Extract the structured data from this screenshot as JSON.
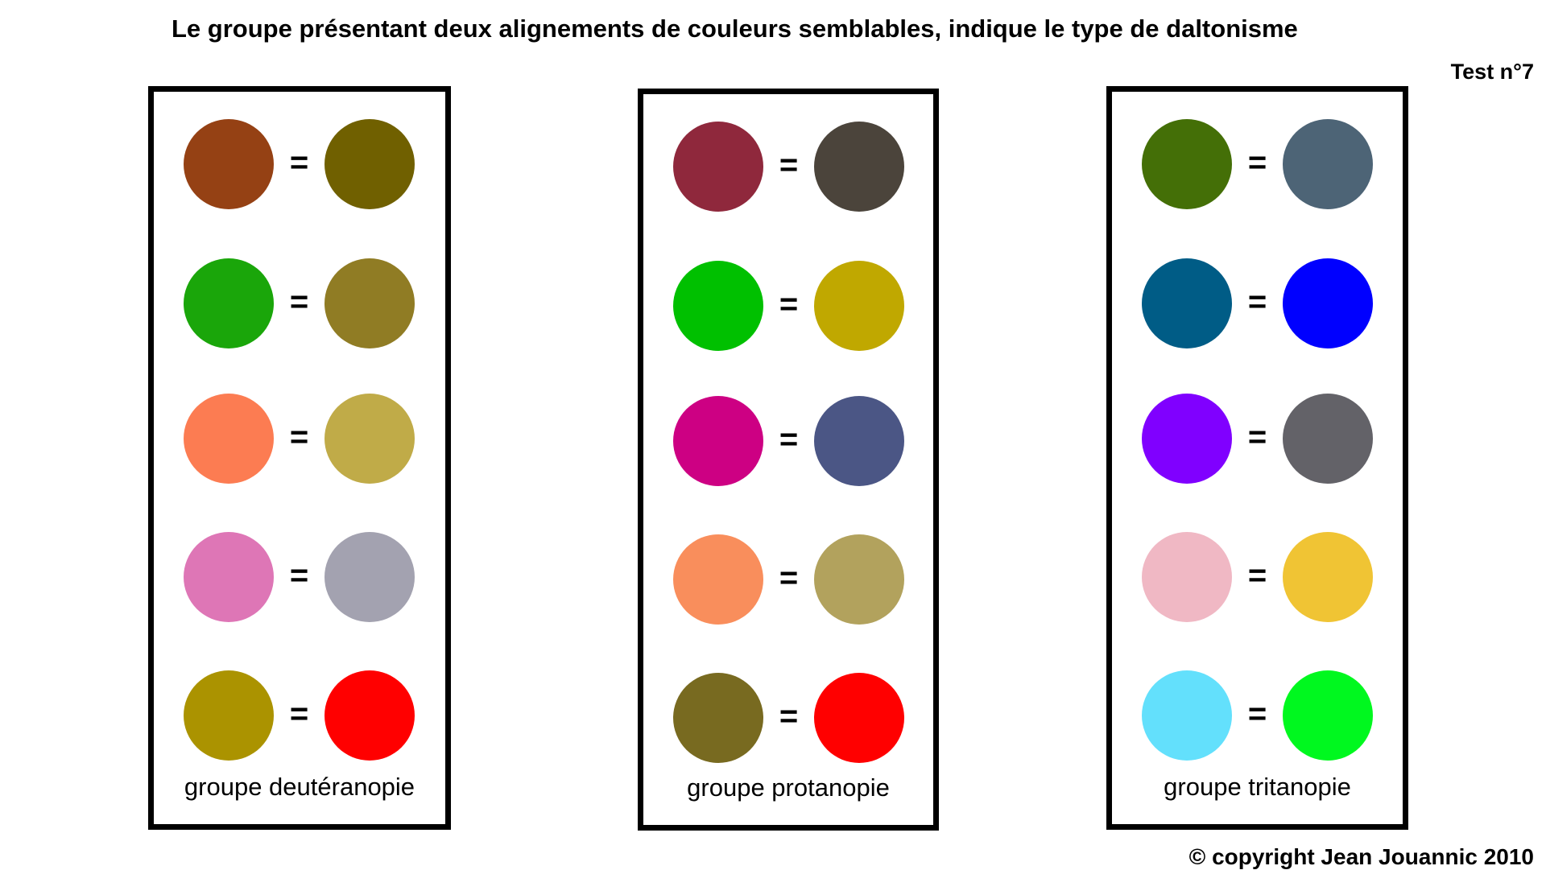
{
  "title": "Le groupe présentant deux alignements de couleurs semblables, indique le type de daltonisme",
  "test_label": "Test n°7",
  "copyright": "© copyright Jean Jouannic 2010",
  "equals_sign": "=",
  "groups": [
    {
      "label": "groupe deutéranopie",
      "pairs": [
        {
          "left": "#954114",
          "right": "#706000"
        },
        {
          "left": "#1aa60a",
          "right": "#907c24"
        },
        {
          "left": "#fc7c52",
          "right": "#c0ab48"
        },
        {
          "left": "#de76b6",
          "right": "#a3a2b0"
        },
        {
          "left": "#ab9300",
          "right": "#ff0000"
        }
      ]
    },
    {
      "label": "groupe protanopie",
      "pairs": [
        {
          "left": "#8f283c",
          "right": "#4b443b"
        },
        {
          "left": "#00c000",
          "right": "#c0a800"
        },
        {
          "left": "#cd0083",
          "right": "#4b5685"
        },
        {
          "left": "#f98e5c",
          "right": "#b2a25d"
        },
        {
          "left": "#786a20",
          "right": "#ff0000"
        }
      ]
    },
    {
      "label": "groupe tritanopie",
      "pairs": [
        {
          "left": "#446f07",
          "right": "#4d6476"
        },
        {
          "left": "#005c86",
          "right": "#0000ff"
        },
        {
          "left": "#8000ff",
          "right": "#636268"
        },
        {
          "left": "#f0b8c4",
          "right": "#f0c434"
        },
        {
          "left": "#63e0fc",
          "right": "#00f81f"
        }
      ]
    }
  ]
}
